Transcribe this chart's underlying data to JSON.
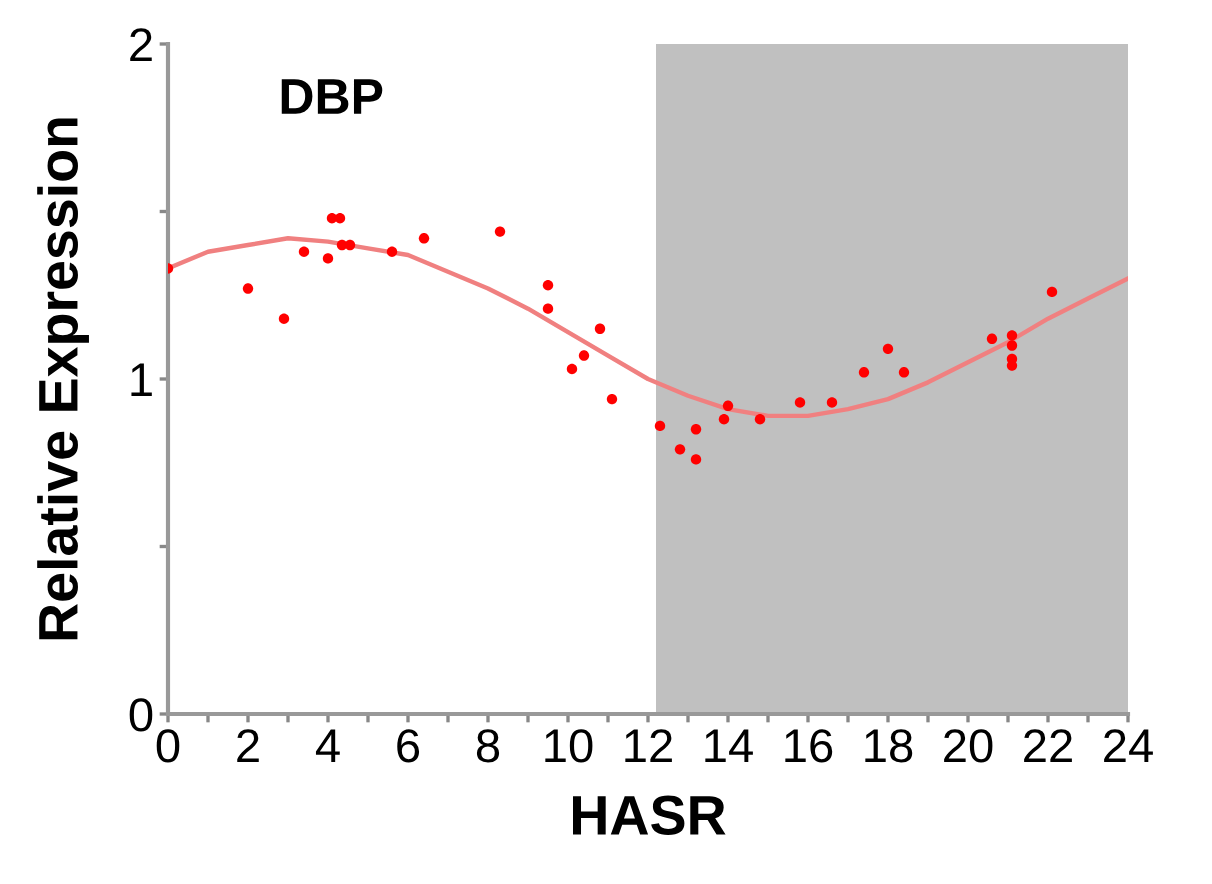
{
  "chart_data": {
    "type": "scatter",
    "title": "DBP",
    "xlabel": "HASR",
    "ylabel": "Relative Expression",
    "xlim": [
      0,
      24
    ],
    "ylim": [
      0,
      2
    ],
    "xticks": [
      0,
      {
        "value": 1,
        "label": null
      },
      2,
      {
        "value": 3,
        "label": null
      },
      4,
      {
        "value": 5,
        "label": null
      },
      6,
      {
        "value": 7,
        "label": null
      },
      8,
      {
        "value": 9,
        "label": null
      },
      10,
      {
        "value": 11,
        "label": null
      },
      12,
      {
        "value": 13,
        "label": null
      },
      14,
      {
        "value": 15,
        "label": null
      },
      16,
      {
        "value": 17,
        "label": null
      },
      18,
      {
        "value": 19,
        "label": null
      },
      20,
      {
        "value": 21,
        "label": null
      },
      22,
      {
        "value": 23,
        "label": null
      },
      24
    ],
    "yticks": [
      0,
      {
        "value": 0.5,
        "label": null
      },
      1,
      {
        "value": 1.5,
        "label": null
      },
      2
    ],
    "grid": false,
    "legend": false,
    "marker": "circle",
    "bands": [
      {
        "axis": "x",
        "from": 12.2,
        "to": 24,
        "color": "#c0c0c0"
      }
    ],
    "series": [
      {
        "color": "#ff0000",
        "x": [
          0,
          2.0,
          2.9,
          3.4,
          4.0,
          4.1,
          4.3,
          4.35,
          4.55,
          5.6,
          6.4,
          8.3,
          9.5,
          9.5,
          10.1,
          10.4,
          10.8,
          11.1,
          12.3,
          12.8,
          13.2,
          13.2,
          13.9,
          14.0,
          14.8,
          15.8,
          16.6,
          17.4,
          18.0,
          18.4,
          20.6,
          21.1,
          21.1,
          21.1,
          21.1,
          22.1
        ],
        "values": [
          1.33,
          1.27,
          1.18,
          1.38,
          1.36,
          1.48,
          1.48,
          1.4,
          1.4,
          1.38,
          1.42,
          1.44,
          1.28,
          1.21,
          1.03,
          1.07,
          1.15,
          0.94,
          0.86,
          0.79,
          0.76,
          0.85,
          0.88,
          0.92,
          0.88,
          0.93,
          0.93,
          1.02,
          1.09,
          1.02,
          1.12,
          1.13,
          1.1,
          1.06,
          1.04,
          1.26
        ]
      },
      {
        "type": "line",
        "color": "#f08080",
        "marker": "none",
        "x": [
          0,
          1,
          2,
          3,
          4,
          5,
          6,
          7,
          8,
          9,
          10,
          11,
          12,
          13,
          14,
          15,
          16,
          17,
          18,
          19,
          20,
          21,
          22,
          23,
          24
        ],
        "values": [
          1.33,
          1.38,
          1.4,
          1.42,
          1.41,
          1.39,
          1.37,
          1.32,
          1.27,
          1.21,
          1.14,
          1.07,
          1.0,
          0.95,
          0.91,
          0.89,
          0.89,
          0.91,
          0.94,
          0.99,
          1.05,
          1.11,
          1.18,
          1.24,
          1.3
        ]
      }
    ]
  }
}
